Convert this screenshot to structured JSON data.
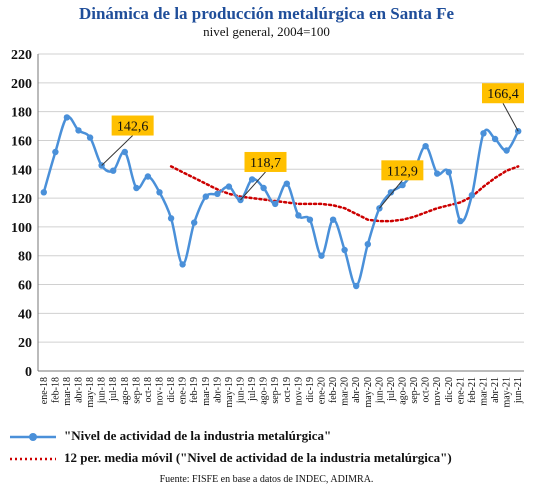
{
  "chart_data": {
    "type": "line",
    "title": "Dinámica de la producción metalúrgica en Santa Fe",
    "subtitle": "nivel general, 2004=100",
    "source": "Fuente: FISFE en base a datos de INDEC, ADIMRA.",
    "ylim": [
      0,
      220
    ],
    "yticks": [
      0,
      20,
      40,
      60,
      80,
      100,
      120,
      140,
      160,
      180,
      200,
      220
    ],
    "grid": true,
    "legend_position": "bottom",
    "categories": [
      "ene-18",
      "feb-18",
      "mar-18",
      "abr-18",
      "may-18",
      "jun-18",
      "jul-18",
      "ago-18",
      "sep-18",
      "oct-18",
      "nov-18",
      "dic-18",
      "ene-19",
      "feb-19",
      "mar-19",
      "abr-19",
      "may-19",
      "jun-19",
      "jul-19",
      "ago-19",
      "sep-19",
      "oct-19",
      "nov-19",
      "dic-19",
      "ene-20",
      "feb-20",
      "mar-20",
      "abr-20",
      "may-20",
      "jun-20",
      "jul-20",
      "ago-20",
      "sep-20",
      "oct-20",
      "nov-20",
      "dic-20",
      "ene-21",
      "feb-21",
      "mar-21",
      "abr-21",
      "may-21",
      "jun-21"
    ],
    "series": [
      {
        "name": "\"Nivel de actividad de la industria metalúrgica\"",
        "color": "#4a90d9",
        "style": "solid-markers",
        "values": [
          124,
          152,
          176,
          167,
          162,
          142.6,
          139,
          152,
          127,
          135,
          124,
          106,
          74,
          103,
          121,
          123,
          128,
          118.7,
          133,
          127,
          116,
          130,
          108,
          105,
          80,
          105,
          84,
          59,
          88,
          112.9,
          124,
          129,
          139,
          156,
          137,
          138,
          104,
          122,
          165,
          161,
          153,
          166.4
        ]
      },
      {
        "name": "12 per. media móvil (\"Nivel de actividad de la industria metalúrgica\")",
        "color": "#cc0000",
        "style": "dotted",
        "values": [
          null,
          null,
          null,
          null,
          null,
          null,
          null,
          null,
          null,
          null,
          null,
          142,
          138,
          134,
          130,
          126,
          123,
          121,
          120,
          119,
          118,
          117,
          116,
          116,
          116,
          115,
          113,
          109,
          105,
          104,
          104,
          105,
          107,
          110,
          113,
          115,
          117,
          121,
          128,
          134,
          139,
          142
        ]
      }
    ],
    "annotations": [
      {
        "index": 5,
        "label": "142,6"
      },
      {
        "index": 17,
        "label": "118,7"
      },
      {
        "index": 29,
        "label": "112,9"
      },
      {
        "index": 41,
        "label": "166,4"
      }
    ]
  }
}
